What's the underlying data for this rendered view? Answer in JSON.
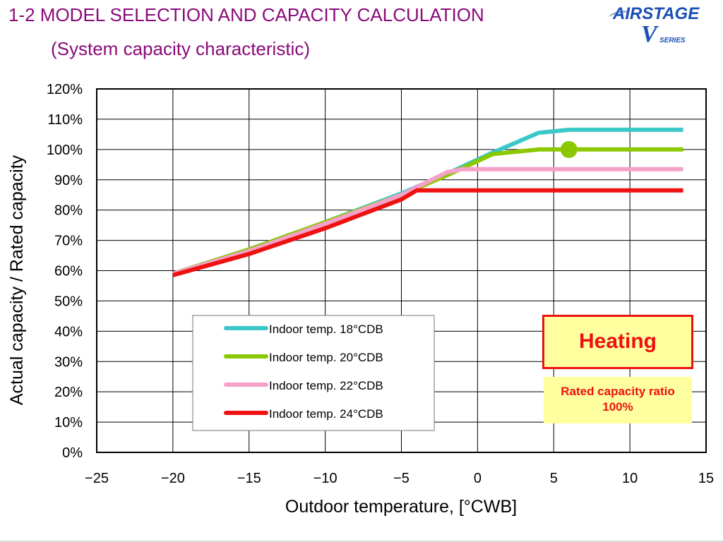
{
  "slide": {
    "title": "1-2 MODEL SELECTION AND CAPACITY CALCULATION",
    "subtitle": "(System capacity characteristic)"
  },
  "logo": {
    "brand": "AIRSTAGE",
    "mark": "V",
    "series": "SERIES"
  },
  "callouts": {
    "heating": "Heating",
    "rated_ratio": "Rated capacity ratio\n100%"
  },
  "colors": {
    "title": "#8a0a7a",
    "accent_red": "#ee1111",
    "callout_fill": "#ffffa0"
  },
  "chart_data": {
    "type": "line",
    "xlabel": "Outdoor temperature,   [°CWB]",
    "ylabel": "Actual capacity / Rated capacity",
    "xlim": [
      -25,
      15
    ],
    "ylim": [
      0,
      120
    ],
    "x_ticks": [
      -25,
      -20,
      -15,
      -10,
      -5,
      0,
      5,
      10,
      15
    ],
    "x_tick_labels": [
      "−25",
      "−20",
      "−15",
      "−10",
      "−5",
      "0",
      "5",
      "10",
      "15"
    ],
    "y_ticks": [
      0,
      10,
      20,
      30,
      40,
      50,
      60,
      70,
      80,
      90,
      100,
      110,
      120
    ],
    "y_tick_labels": [
      "0%",
      "10%",
      "20%",
      "30%",
      "40%",
      "50%",
      "60%",
      "70%",
      "80%",
      "90%",
      "100%",
      "110%",
      "120%"
    ],
    "grid": true,
    "legend_position": "bottom-left",
    "series": [
      {
        "name": "Indoor temp. 18°CDB",
        "color": "#3cc8c8",
        "points": [
          [
            -20,
            59
          ],
          [
            -15,
            67
          ],
          [
            -10,
            76
          ],
          [
            -5,
            85.5
          ],
          [
            -2,
            92
          ],
          [
            1,
            99
          ],
          [
            4,
            105.5
          ],
          [
            6,
            106.5
          ],
          [
            13.5,
            106.5
          ]
        ]
      },
      {
        "name": "Indoor temp. 20°CDB",
        "color": "#8cc800",
        "points": [
          [
            -20,
            59
          ],
          [
            -15,
            67
          ],
          [
            -10,
            76
          ],
          [
            -5,
            85
          ],
          [
            -2,
            91.5
          ],
          [
            1,
            98.5
          ],
          [
            4,
            100
          ],
          [
            13.5,
            100
          ]
        ]
      },
      {
        "name": "Indoor temp. 22°CDB",
        "color": "#f5a0c8",
        "points": [
          [
            -20,
            59
          ],
          [
            -15,
            66.5
          ],
          [
            -10,
            75.5
          ],
          [
            -5,
            85
          ],
          [
            -2,
            92.5
          ],
          [
            -1,
            93.5
          ],
          [
            13.5,
            93.5
          ]
        ]
      },
      {
        "name": "Indoor temp. 24°CDB",
        "color": "#ee1111",
        "points": [
          [
            -20,
            58.5
          ],
          [
            -15,
            65.5
          ],
          [
            -10,
            74
          ],
          [
            -5,
            83.5
          ],
          [
            -4,
            86.5
          ],
          [
            13.5,
            86.5
          ]
        ]
      }
    ],
    "markers": [
      {
        "x": 6,
        "y": 100,
        "color": "#8cc800"
      }
    ]
  }
}
